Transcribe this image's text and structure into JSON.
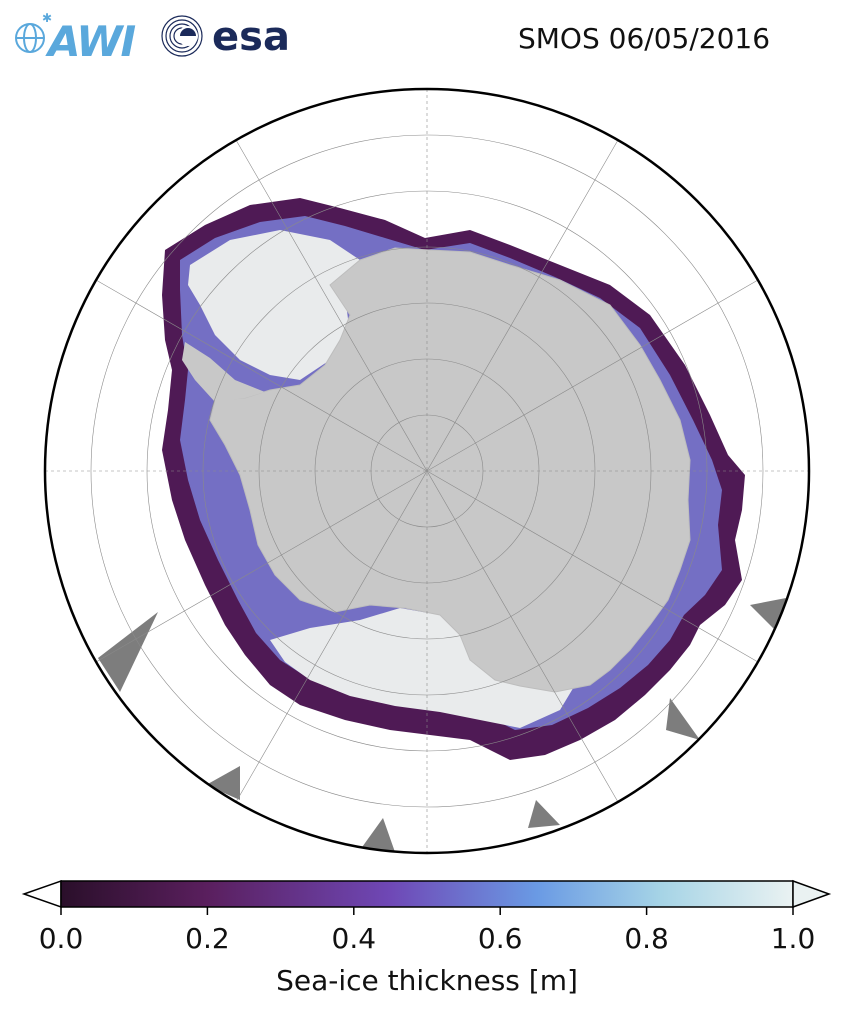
{
  "header": {
    "title": "SMOS 06/05/2016",
    "logo_awi": "AWI",
    "logo_esa": "esa"
  },
  "map": {
    "projection": "south-polar-stereographic",
    "land_color": "#c8c8c8",
    "icon": "antarctica-map"
  },
  "colorbar": {
    "label": "Sea-ice thickness [m]",
    "ticks": [
      "0.0",
      "0.2",
      "0.4",
      "0.6",
      "0.8",
      "1.0"
    ],
    "tick_values": [
      0.0,
      0.2,
      0.4,
      0.6,
      0.8,
      1.0
    ],
    "range": [
      0.0,
      1.0
    ],
    "extend": "both",
    "colormap_stops": [
      "#2a0f2a",
      "#5a1f5e",
      "#6f3fa6",
      "#6a8ee0",
      "#9fd0e6",
      "#eaf2f2"
    ]
  }
}
